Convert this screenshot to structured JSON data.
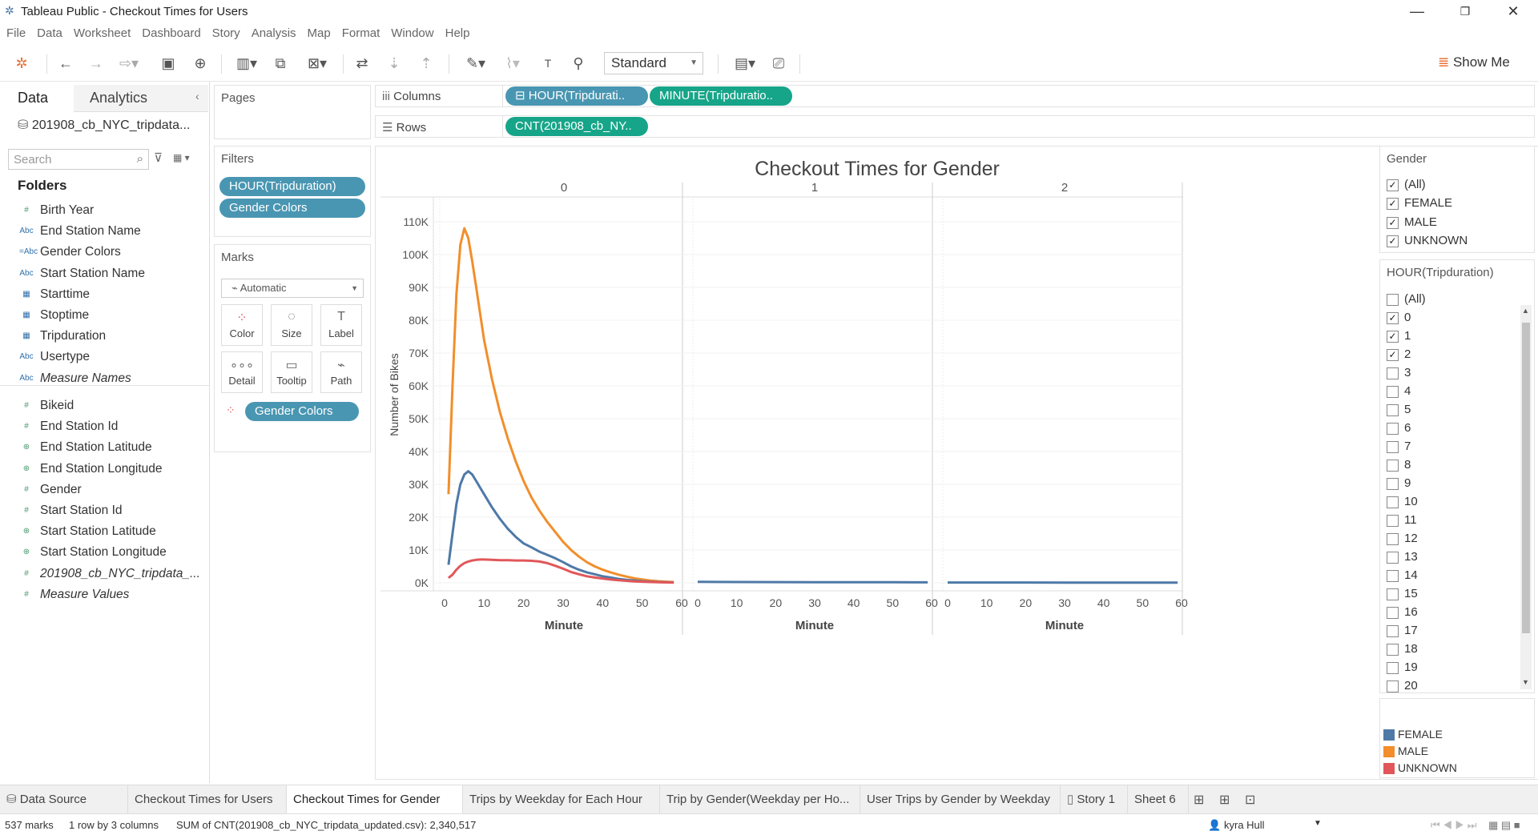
{
  "window": {
    "title": "Tableau Public - Checkout Times for Users"
  },
  "menu": [
    "File",
    "Data",
    "Worksheet",
    "Dashboard",
    "Story",
    "Analysis",
    "Map",
    "Format",
    "Window",
    "Help"
  ],
  "toolbar": {
    "fit_mode": "Standard",
    "show_me": "Show Me"
  },
  "data_pane": {
    "tabs": [
      "Data",
      "Analytics"
    ],
    "datasource": "201908_cb_NYC_tripdata...",
    "search_placeholder": "Search",
    "folders_label": "Folders",
    "dimensions": [
      {
        "name": "Birth Year",
        "type": "#"
      },
      {
        "name": "End Station Name",
        "type": "Abc"
      },
      {
        "name": "Gender Colors",
        "type": "=Abc"
      },
      {
        "name": "Start Station Name",
        "type": "Abc"
      },
      {
        "name": "Starttime",
        "type": "date"
      },
      {
        "name": "Stoptime",
        "type": "date"
      },
      {
        "name": "Tripduration",
        "type": "date"
      },
      {
        "name": "Usertype",
        "type": "Abc"
      },
      {
        "name": "Measure Names",
        "type": "Abc",
        "italic": true
      }
    ],
    "measures": [
      {
        "name": "Bikeid",
        "type": "#"
      },
      {
        "name": "End Station Id",
        "type": "#"
      },
      {
        "name": "End Station Latitude",
        "type": "geo"
      },
      {
        "name": "End Station Longitude",
        "type": "geo"
      },
      {
        "name": "Gender",
        "type": "#"
      },
      {
        "name": "Start Station Id",
        "type": "#"
      },
      {
        "name": "Start Station Latitude",
        "type": "geo"
      },
      {
        "name": "Start Station Longitude",
        "type": "geo"
      },
      {
        "name": "201908_cb_NYC_tripdata_...",
        "type": "#",
        "italic": true
      },
      {
        "name": "Measure Values",
        "type": "#",
        "italic": true
      }
    ]
  },
  "pages_label": "Pages",
  "filters": {
    "label": "Filters",
    "pills": [
      "HOUR(Tripduration)",
      "Gender Colors"
    ]
  },
  "marks": {
    "label": "Marks",
    "type": "Automatic",
    "buttons": [
      "Color",
      "Size",
      "Label",
      "Detail",
      "Tooltip",
      "Path"
    ],
    "color_pill": "Gender Colors"
  },
  "shelves": {
    "columns_label": "Columns",
    "columns_pills": [
      "⊟ HOUR(Tripdurati..",
      "MINUTE(Tripduratio.."
    ],
    "rows_label": "Rows",
    "rows_pills": [
      "CNT(201908_cb_NY.."
    ]
  },
  "chart_data": {
    "type": "line",
    "title": "Checkout Times for Gender",
    "panel_headers": [
      "0",
      "1",
      "2"
    ],
    "xlabel": "Minute",
    "ylabel": "Number of Bikes",
    "x_ticks": [
      0,
      10,
      20,
      30,
      40,
      50,
      60
    ],
    "y_ticks": [
      "0K",
      "10K",
      "20K",
      "30K",
      "40K",
      "50K",
      "60K",
      "70K",
      "80K",
      "90K",
      "100K",
      "110K"
    ],
    "ylim": [
      0,
      110000
    ],
    "xlim": [
      0,
      60
    ],
    "panels": [
      {
        "hour": 0,
        "series": [
          {
            "name": "MALE",
            "color": "#f28e2b",
            "x": [
              1,
              2,
              3,
              4,
              5,
              6,
              7,
              8,
              9,
              10,
              12,
              14,
              16,
              18,
              20,
              22,
              24,
              26,
              28,
              30,
              32,
              34,
              36,
              38,
              40,
              42,
              44,
              46,
              48,
              50,
              52,
              54,
              56,
              58
            ],
            "y": [
              27000,
              60000,
              88000,
              103000,
              108000,
              105000,
              98000,
              90000,
              82000,
              74000,
              62000,
              52000,
              44000,
              37000,
              31000,
              26000,
              22000,
              18500,
              15500,
              12500,
              10000,
              8000,
              6300,
              5000,
              4000,
              3200,
              2500,
              1900,
              1400,
              1000,
              700,
              500,
              350,
              250
            ]
          },
          {
            "name": "FEMALE",
            "color": "#4e79a7",
            "x": [
              1,
              2,
              3,
              4,
              5,
              6,
              7,
              8,
              9,
              10,
              12,
              14,
              16,
              18,
              20,
              22,
              24,
              26,
              28,
              30,
              32,
              34,
              36,
              38,
              40,
              42,
              44,
              46,
              48,
              50,
              52,
              54,
              56,
              58
            ],
            "y": [
              5500,
              15000,
              24000,
              30000,
              33000,
              34000,
              33000,
              31000,
              29000,
              27000,
              23000,
              19500,
              16500,
              14000,
              12000,
              10800,
              9500,
              8500,
              7500,
              6300,
              5000,
              4000,
              3200,
              2600,
              2000,
              1600,
              1200,
              900,
              700,
              500,
              350,
              250,
              180,
              120
            ]
          },
          {
            "name": "UNKNOWN",
            "color": "#e15759",
            "x": [
              1,
              2,
              3,
              4,
              5,
              6,
              7,
              8,
              9,
              10,
              12,
              14,
              16,
              18,
              20,
              22,
              24,
              26,
              28,
              30,
              32,
              34,
              36,
              38,
              40,
              42,
              44,
              46,
              48,
              50,
              52,
              54,
              56,
              58
            ],
            "y": [
              1500,
              2500,
              4000,
              5200,
              6000,
              6500,
              6800,
              7000,
              7100,
              7100,
              7000,
              6900,
              6900,
              6800,
              6800,
              6700,
              6500,
              6000,
              5200,
              4300,
              3300,
              2600,
              2000,
              1600,
              1300,
              1000,
              800,
              600,
              450,
              350,
              250,
              180,
              120,
              80
            ]
          }
        ]
      },
      {
        "hour": 1,
        "series": [
          {
            "name": "FEMALE",
            "color": "#4e79a7",
            "x": [
              0,
              10,
              20,
              30,
              40,
              50,
              59
            ],
            "y": [
              300,
              250,
              220,
              200,
              180,
              160,
              150
            ]
          }
        ]
      },
      {
        "hour": 2,
        "series": [
          {
            "name": "FEMALE",
            "color": "#4e79a7",
            "x": [
              0,
              10,
              20,
              30,
              40,
              50,
              59
            ],
            "y": [
              100,
              90,
              90,
              80,
              80,
              70,
              70
            ]
          }
        ]
      }
    ]
  },
  "gender_filter": {
    "title": "Gender",
    "items": [
      {
        "label": "(All)",
        "checked": true
      },
      {
        "label": "FEMALE",
        "checked": true
      },
      {
        "label": "MALE",
        "checked": true
      },
      {
        "label": "UNKNOWN",
        "checked": true
      }
    ]
  },
  "hour_filter": {
    "title": "HOUR(Tripduration)",
    "items": [
      {
        "label": "(All)",
        "checked": false
      },
      {
        "label": "0",
        "checked": true
      },
      {
        "label": "1",
        "checked": true
      },
      {
        "label": "2",
        "checked": true
      },
      {
        "label": "3",
        "checked": false
      },
      {
        "label": "4",
        "checked": false
      },
      {
        "label": "5",
        "checked": false
      },
      {
        "label": "6",
        "checked": false
      },
      {
        "label": "7",
        "checked": false
      },
      {
        "label": "8",
        "checked": false
      },
      {
        "label": "9",
        "checked": false
      },
      {
        "label": "10",
        "checked": false
      },
      {
        "label": "11",
        "checked": false
      },
      {
        "label": "12",
        "checked": false
      },
      {
        "label": "13",
        "checked": false
      },
      {
        "label": "14",
        "checked": false
      },
      {
        "label": "15",
        "checked": false
      },
      {
        "label": "16",
        "checked": false
      },
      {
        "label": "17",
        "checked": false
      },
      {
        "label": "18",
        "checked": false
      },
      {
        "label": "19",
        "checked": false
      },
      {
        "label": "20",
        "checked": false
      }
    ]
  },
  "color_legend": [
    {
      "label": "FEMALE",
      "color": "#4e79a7"
    },
    {
      "label": "MALE",
      "color": "#f28e2b"
    },
    {
      "label": "UNKNOWN",
      "color": "#e15759"
    }
  ],
  "sheet_tabs": [
    "Data Source",
    "Checkout Times for Users",
    "Checkout Times for Gender",
    "Trips by Weekday for Each Hour",
    "Trip by Gender(Weekday per Ho...",
    "User Trips by Gender by Weekday",
    "Story 1",
    "Sheet 6"
  ],
  "active_tab": "Checkout Times for Gender",
  "status": {
    "marks": "537 marks",
    "dims": "1 row by 3 columns",
    "sum": "SUM of CNT(201908_cb_NYC_tripdata_updated.csv): 2,340,517",
    "user": "kyra Hull"
  }
}
